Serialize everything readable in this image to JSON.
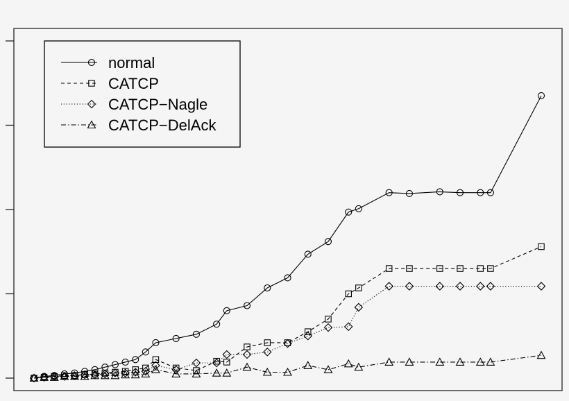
{
  "chart_data": {
    "type": "line",
    "title": "",
    "xlabel": "",
    "ylabel": "",
    "ylim": [
      0,
      4
    ],
    "y_ticks": [
      0,
      1,
      2,
      3,
      4
    ],
    "xlim": [
      0,
      100
    ],
    "grid": false,
    "legend_position": "top-left",
    "x": [
      0,
      2,
      4,
      6,
      8,
      10,
      12,
      14,
      16,
      18,
      20,
      22,
      24,
      28,
      32,
      36,
      38,
      42,
      46,
      50,
      54,
      58,
      62,
      64,
      70,
      74,
      80,
      84,
      88,
      90,
      100
    ],
    "series": [
      {
        "name": "normal",
        "marker": "circle",
        "line": "solid",
        "values": [
          0.0,
          0.02,
          0.03,
          0.05,
          0.06,
          0.08,
          0.1,
          0.13,
          0.16,
          0.19,
          0.22,
          0.31,
          0.42,
          0.47,
          0.52,
          0.64,
          0.8,
          0.86,
          1.07,
          1.19,
          1.47,
          1.62,
          1.97,
          2.01,
          2.2,
          2.19,
          2.21,
          2.2,
          2.2,
          2.2,
          3.35
        ]
      },
      {
        "name": "CATCP",
        "marker": "square",
        "line": "dashed",
        "values": [
          0.0,
          0.01,
          0.02,
          0.03,
          0.03,
          0.04,
          0.05,
          0.06,
          0.07,
          0.08,
          0.1,
          0.12,
          0.22,
          0.12,
          0.09,
          0.2,
          0.19,
          0.37,
          0.42,
          0.42,
          0.55,
          0.7,
          1.0,
          1.07,
          1.3,
          1.3,
          1.3,
          1.3,
          1.3,
          1.3,
          1.56
        ]
      },
      {
        "name": "CATCP-Nagle",
        "marker": "diamond",
        "line": "dotted",
        "values": [
          0.0,
          0.01,
          0.02,
          0.02,
          0.03,
          0.04,
          0.04,
          0.05,
          0.06,
          0.06,
          0.07,
          0.08,
          0.15,
          0.1,
          0.18,
          0.18,
          0.28,
          0.28,
          0.31,
          0.41,
          0.5,
          0.6,
          0.61,
          0.84,
          1.09,
          1.09,
          1.09,
          1.09,
          1.09,
          1.09,
          1.09
        ]
      },
      {
        "name": "CATCP-DelAck",
        "marker": "triangle",
        "line": "dashdot",
        "values": [
          0.0,
          0.01,
          0.01,
          0.02,
          0.02,
          0.02,
          0.03,
          0.03,
          0.03,
          0.04,
          0.04,
          0.05,
          0.1,
          0.05,
          0.05,
          0.06,
          0.06,
          0.13,
          0.07,
          0.07,
          0.15,
          0.1,
          0.17,
          0.13,
          0.19,
          0.19,
          0.19,
          0.19,
          0.19,
          0.19,
          0.27
        ]
      }
    ]
  }
}
